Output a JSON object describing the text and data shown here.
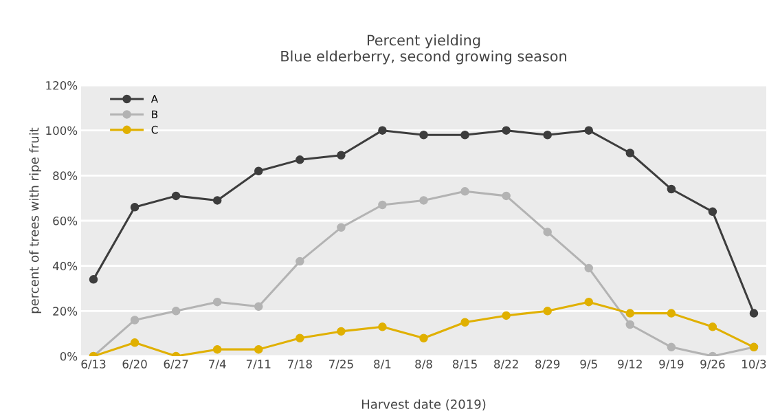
{
  "chart_data": {
    "type": "line",
    "title": "Percent yielding\nBlue elderberry, second growing season",
    "xlabel": "Harvest date (2019)",
    "ylabel": "percent of trees with ripe fruit",
    "categories": [
      "6/13",
      "6/20",
      "6/27",
      "7/4",
      "7/11",
      "7/18",
      "7/25",
      "8/1",
      "8/8",
      "8/15",
      "8/22",
      "8/29",
      "9/5",
      "9/12",
      "9/19",
      "9/26",
      "10/3"
    ],
    "series": [
      {
        "name": "A",
        "color": "#3d3d3d",
        "values": [
          34,
          66,
          71,
          69,
          82,
          87,
          89,
          100,
          98,
          98,
          100,
          98,
          100,
          90,
          74,
          64,
          19
        ]
      },
      {
        "name": "B",
        "color": "#b3b3b3",
        "values": [
          0,
          16,
          20,
          24,
          22,
          42,
          57,
          67,
          69,
          73,
          71,
          55,
          39,
          14,
          4,
          0,
          4
        ]
      },
      {
        "name": "C",
        "color": "#e0b000",
        "values": [
          0,
          6,
          0,
          3,
          3,
          8,
          11,
          13,
          8,
          15,
          18,
          20,
          24,
          19,
          19,
          13,
          4
        ]
      }
    ],
    "ylim": [
      0,
      120
    ],
    "yticks": [
      {
        "value": 0,
        "label": "0%"
      },
      {
        "value": 20,
        "label": "20%"
      },
      {
        "value": 40,
        "label": "40%"
      },
      {
        "value": 60,
        "label": "60%"
      },
      {
        "value": 80,
        "label": "80%"
      },
      {
        "value": 100,
        "label": "100%"
      },
      {
        "value": 120,
        "label": "120%"
      }
    ],
    "grid": "y",
    "legend": "top left",
    "marker": "circle",
    "line_style": "solid"
  }
}
